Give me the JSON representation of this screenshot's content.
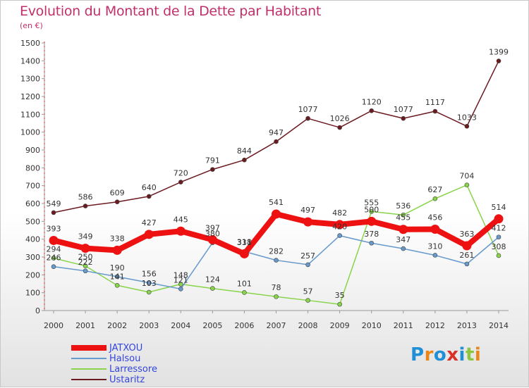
{
  "chart_data": {
    "type": "line",
    "title": "Evolution du Montant de la Dette par Habitant",
    "subtitle": "(en €)",
    "x": [
      "2000",
      "2001",
      "2002",
      "2003",
      "2004",
      "2005",
      "2006",
      "2007",
      "2008",
      "2009",
      "2010",
      "2011",
      "2012",
      "2013",
      "2014"
    ],
    "ylim": [
      0,
      1500
    ],
    "yticks": [
      0,
      100,
      200,
      300,
      400,
      500,
      600,
      700,
      800,
      900,
      1000,
      1100,
      1200,
      1300,
      1400,
      1500
    ],
    "grid": false,
    "legend_position": "bottom-left",
    "series": [
      {
        "name": "Ustaritz",
        "color": "#6b1a1f",
        "values": [
          549,
          586,
          609,
          640,
          720,
          791,
          844,
          947,
          1077,
          1026,
          1120,
          1077,
          1117,
          1033,
          1399
        ]
      },
      {
        "name": "Larressore",
        "color": "#88d44a",
        "values": [
          294,
          250,
          141,
          103,
          148,
          124,
          101,
          78,
          57,
          35,
          555,
          536,
          627,
          704,
          308
        ]
      },
      {
        "name": "Halsou",
        "color": "#6699cc",
        "values": [
          246,
          222,
          190,
          156,
          121,
          380,
          331,
          282,
          257,
          420,
          378,
          347,
          310,
          261,
          412
        ]
      },
      {
        "name": "JATXOU",
        "color": "#ee1111",
        "values": [
          393,
          349,
          338,
          427,
          445,
          397,
          318,
          541,
          497,
          482,
          500,
          455,
          456,
          363,
          514
        ]
      }
    ]
  },
  "legend": {
    "order": [
      "JATXOU",
      "Halsou",
      "Larressore",
      "Ustaritz"
    ]
  },
  "brand": {
    "name": "Proxiti",
    "letters": [
      {
        "ch": "P",
        "color": "#1f8fd6"
      },
      {
        "ch": "r",
        "color": "#e8861a"
      },
      {
        "ch": "o",
        "color": "#1f8fd6"
      },
      {
        "ch": "x",
        "color": "#d9302a"
      },
      {
        "ch": "i",
        "color": "#1f8fd6"
      },
      {
        "ch": "t",
        "color": "#8cc63f"
      },
      {
        "ch": "i",
        "color": "#e8861a"
      }
    ]
  }
}
